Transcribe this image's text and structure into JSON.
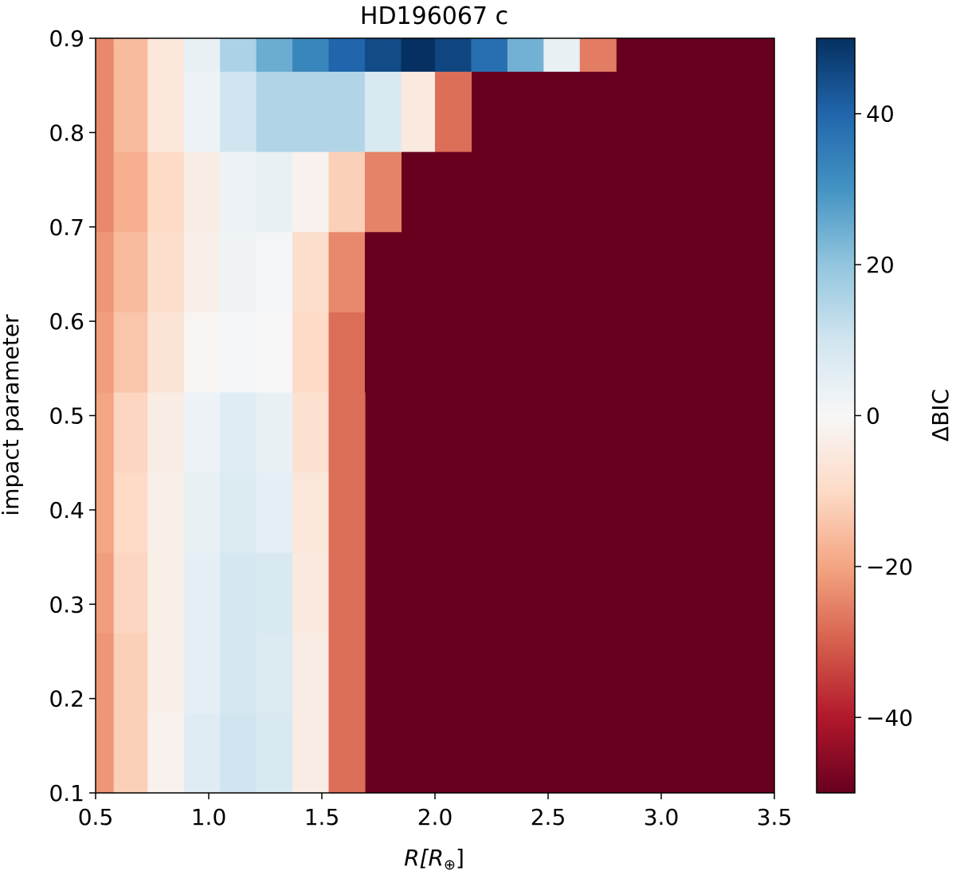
{
  "chart_data": {
    "type": "heatmap",
    "title": "HD196067 c",
    "xlabel": "R[R",
    "xlabel_sub": "⊕",
    "xlabel_close": "]",
    "ylabel": "impact parameter",
    "colorbar_label": "ΔBIC",
    "xlim": [
      0.5,
      3.5
    ],
    "ylim": [
      0.1,
      0.9
    ],
    "clim": [
      -50,
      50
    ],
    "colormap": "RdBu",
    "x_ticks": [
      0.5,
      1.0,
      1.5,
      2.0,
      2.5,
      3.0,
      3.5
    ],
    "x_tick_labels": [
      "0.5",
      "1.0",
      "1.5",
      "2.0",
      "2.5",
      "3.0",
      "3.5"
    ],
    "y_ticks": [
      0.1,
      0.2,
      0.3,
      0.4,
      0.5,
      0.6,
      0.7,
      0.8,
      0.9
    ],
    "y_tick_labels": [
      "0.1",
      "0.2",
      "0.3",
      "0.4",
      "0.5",
      "0.6",
      "0.7",
      "0.8",
      "0.9"
    ],
    "colorbar_ticks": [
      40,
      20,
      0,
      -20,
      -40
    ],
    "colorbar_tick_labels": [
      "40",
      "20",
      "0",
      "−20",
      "−40"
    ],
    "x_edges": [
      0.5,
      0.58,
      0.73,
      0.89,
      1.05,
      1.21,
      1.37,
      1.53,
      1.69,
      1.85,
      2.0,
      2.16,
      2.32,
      2.48,
      2.64,
      2.8
    ],
    "y_edges": [
      0.1,
      0.185,
      0.27,
      0.355,
      0.44,
      0.525,
      0.61,
      0.695,
      0.78,
      0.865,
      0.9
    ],
    "background_value": -50,
    "z_rows": [
      [
        -22,
        -12,
        -2,
        6,
        10,
        8,
        -4,
        -28
      ],
      [
        -22,
        -12,
        -3,
        5,
        9,
        7,
        -4,
        -28
      ],
      [
        -21,
        -11,
        -3,
        5,
        9,
        8,
        -5,
        -28
      ],
      [
        -20,
        -10,
        -3,
        4,
        7,
        5,
        -6,
        -28
      ],
      [
        -20,
        -11,
        -4,
        3,
        6,
        4,
        -8,
        -28
      ],
      [
        -21,
        -14,
        -7,
        -1,
        1,
        0,
        -10,
        -28,
        -50
      ],
      [
        -22,
        -16,
        -9,
        -3,
        2,
        1,
        -9,
        -24,
        -50
      ],
      [
        -24,
        -18,
        -10,
        -4,
        3,
        4,
        -2,
        -12,
        -25
      ],
      [
        -24,
        -16,
        -6,
        3,
        10,
        15,
        15,
        15,
        8,
        -5,
        -28
      ],
      [
        -24,
        -16,
        -6,
        4,
        16,
        25,
        33,
        40,
        45,
        50,
        46,
        38,
        24,
        4,
        -26
      ]
    ]
  }
}
